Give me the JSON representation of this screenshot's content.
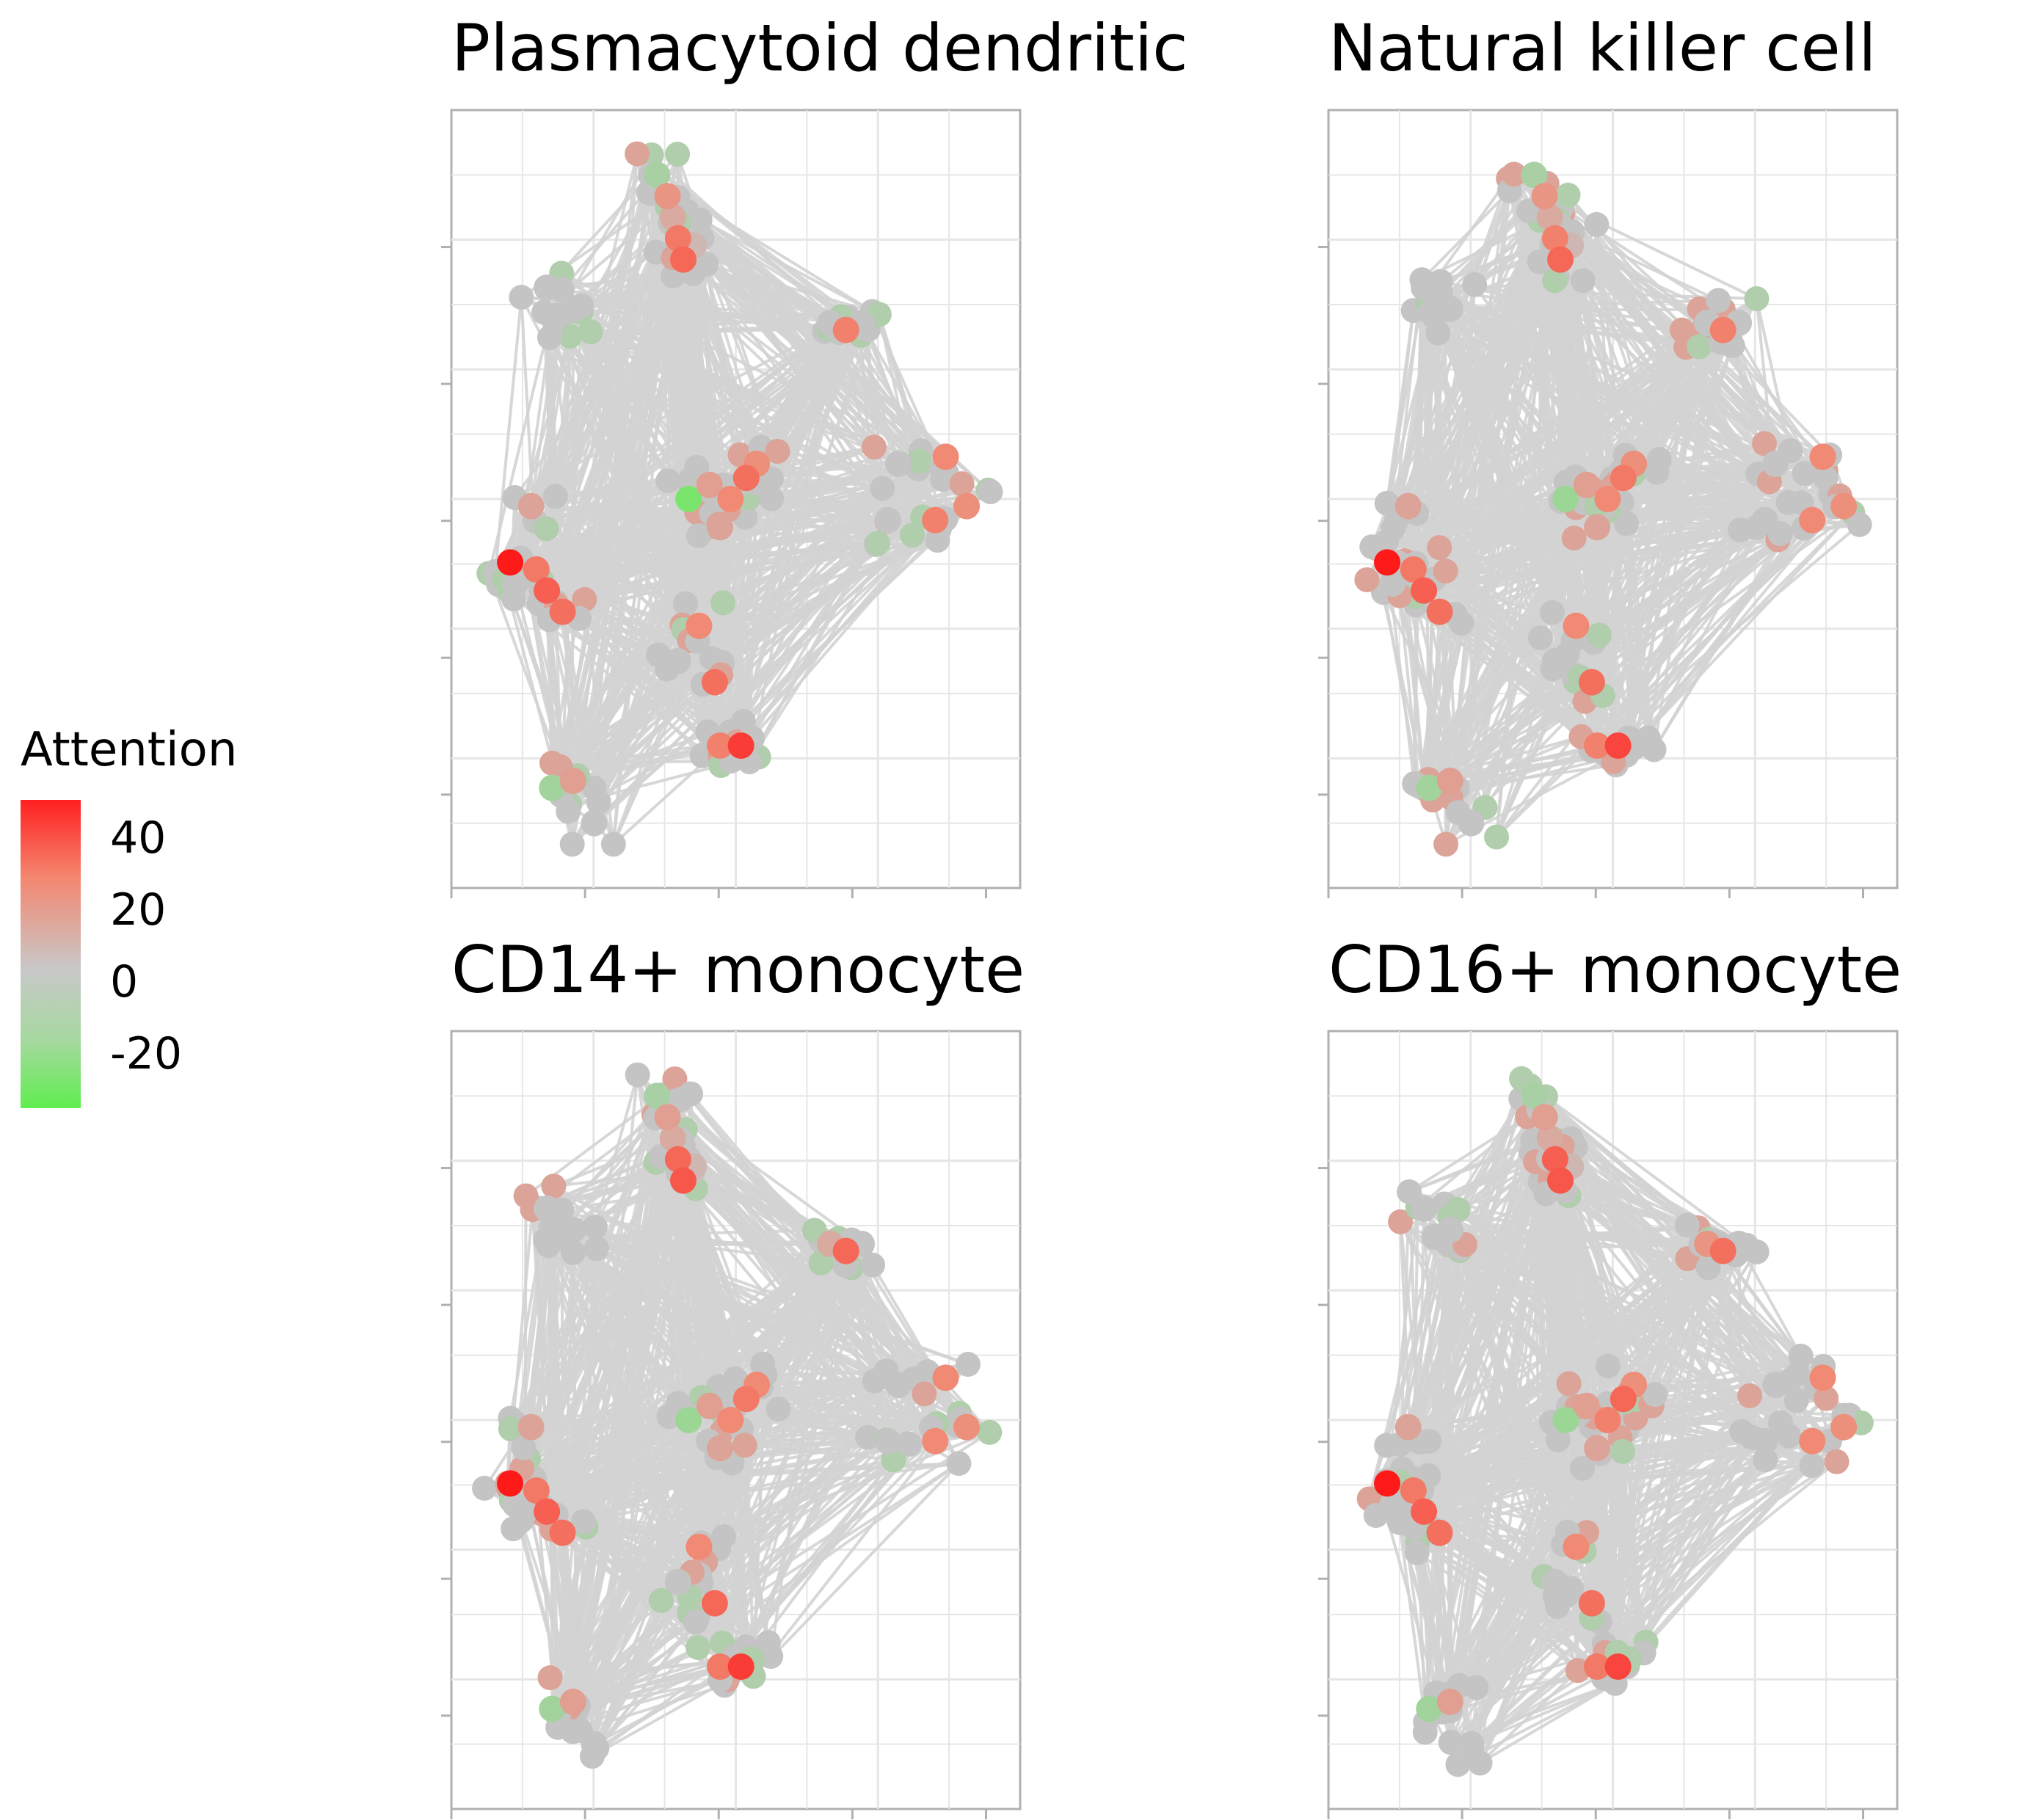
{
  "colors": {
    "high": "#ff1a1a",
    "mid_high": "#f08a74",
    "neutral": "#c4c4c4",
    "low": "#66ee55",
    "edge": "#d3d3d3",
    "panel_border": "#b0b0b0",
    "grid": "#e6e6e6"
  },
  "legend": {
    "title": "Attention",
    "ticks": [
      "40",
      "20",
      "0",
      "-20"
    ],
    "tick_values": [
      40,
      20,
      0,
      -20
    ],
    "range": [
      -28,
      48
    ],
    "placement": "left"
  },
  "chart_data": [
    {
      "type": "scatter",
      "title": "Plasmacytoid dendritic",
      "layout": "network graph of cell nodes colored by attention score, connected by dense grey edges",
      "xlim": [
        0,
        1
      ],
      "ylim": [
        0,
        1
      ],
      "grid": true,
      "points": [
        {
          "x": 0.35,
          "y": 0.96,
          "v": -8
        },
        {
          "x": 0.37,
          "y": 0.93,
          "v": 18
        },
        {
          "x": 0.38,
          "y": 0.9,
          "v": 10
        },
        {
          "x": 0.39,
          "y": 0.87,
          "v": 26
        },
        {
          "x": 0.4,
          "y": 0.84,
          "v": 30
        },
        {
          "x": 0.42,
          "y": 0.86,
          "v": 5
        },
        {
          "x": 0.14,
          "y": 0.8,
          "v": 0
        },
        {
          "x": 0.16,
          "y": 0.76,
          "v": 0
        },
        {
          "x": 0.19,
          "y": 0.77,
          "v": 0
        },
        {
          "x": 0.68,
          "y": 0.75,
          "v": 0
        },
        {
          "x": 0.71,
          "y": 0.74,
          "v": 24
        },
        {
          "x": 0.74,
          "y": 0.75,
          "v": 0
        },
        {
          "x": 0.45,
          "y": 0.52,
          "v": 14
        },
        {
          "x": 0.49,
          "y": 0.5,
          "v": 22
        },
        {
          "x": 0.52,
          "y": 0.53,
          "v": 28
        },
        {
          "x": 0.54,
          "y": 0.55,
          "v": 20
        },
        {
          "x": 0.41,
          "y": 0.5,
          "v": -22
        },
        {
          "x": 0.47,
          "y": 0.46,
          "v": 12
        },
        {
          "x": 0.81,
          "y": 0.55,
          "v": 0
        },
        {
          "x": 0.9,
          "y": 0.56,
          "v": 22
        },
        {
          "x": 0.94,
          "y": 0.49,
          "v": 20
        },
        {
          "x": 0.88,
          "y": 0.47,
          "v": 24
        },
        {
          "x": 0.79,
          "y": 0.47,
          "v": 0
        },
        {
          "x": 0.07,
          "y": 0.41,
          "v": 48
        },
        {
          "x": 0.12,
          "y": 0.4,
          "v": 26
        },
        {
          "x": 0.14,
          "y": 0.37,
          "v": 32
        },
        {
          "x": 0.17,
          "y": 0.34,
          "v": 28
        },
        {
          "x": 0.08,
          "y": 0.38,
          "v": 0
        },
        {
          "x": 0.11,
          "y": 0.49,
          "v": 12
        },
        {
          "x": 0.43,
          "y": 0.32,
          "v": 22
        },
        {
          "x": 0.46,
          "y": 0.24,
          "v": 28
        },
        {
          "x": 0.39,
          "y": 0.27,
          "v": 0
        },
        {
          "x": 0.47,
          "y": 0.15,
          "v": 24
        },
        {
          "x": 0.51,
          "y": 0.15,
          "v": 40
        },
        {
          "x": 0.53,
          "y": 0.16,
          "v": 0
        },
        {
          "x": 0.19,
          "y": 0.1,
          "v": 14
        },
        {
          "x": 0.15,
          "y": 0.09,
          "v": -10
        },
        {
          "x": 0.23,
          "y": 0.04,
          "v": 0
        }
      ]
    },
    {
      "type": "scatter",
      "title": "Natural killer cell",
      "layout": "network graph of cell nodes colored by attention score, connected by dense grey edges",
      "xlim": [
        0,
        1
      ],
      "ylim": [
        0,
        1
      ],
      "grid": true,
      "points": [
        {
          "x": 0.35,
          "y": 0.96,
          "v": -8
        },
        {
          "x": 0.37,
          "y": 0.93,
          "v": 18
        },
        {
          "x": 0.38,
          "y": 0.9,
          "v": 10
        },
        {
          "x": 0.39,
          "y": 0.87,
          "v": 24
        },
        {
          "x": 0.4,
          "y": 0.84,
          "v": 30
        },
        {
          "x": 0.42,
          "y": 0.86,
          "v": 5
        },
        {
          "x": 0.14,
          "y": 0.8,
          "v": 0
        },
        {
          "x": 0.16,
          "y": 0.76,
          "v": 0
        },
        {
          "x": 0.19,
          "y": 0.77,
          "v": 0
        },
        {
          "x": 0.68,
          "y": 0.75,
          "v": 0
        },
        {
          "x": 0.71,
          "y": 0.74,
          "v": 24
        },
        {
          "x": 0.74,
          "y": 0.75,
          "v": 0
        },
        {
          "x": 0.45,
          "y": 0.52,
          "v": 14
        },
        {
          "x": 0.49,
          "y": 0.5,
          "v": 22
        },
        {
          "x": 0.52,
          "y": 0.53,
          "v": 26
        },
        {
          "x": 0.54,
          "y": 0.55,
          "v": 20
        },
        {
          "x": 0.41,
          "y": 0.5,
          "v": -12
        },
        {
          "x": 0.47,
          "y": 0.46,
          "v": 12
        },
        {
          "x": 0.81,
          "y": 0.55,
          "v": 0
        },
        {
          "x": 0.9,
          "y": 0.56,
          "v": 22
        },
        {
          "x": 0.94,
          "y": 0.49,
          "v": 20
        },
        {
          "x": 0.88,
          "y": 0.47,
          "v": 22
        },
        {
          "x": 0.79,
          "y": 0.47,
          "v": 0
        },
        {
          "x": 0.07,
          "y": 0.41,
          "v": 48
        },
        {
          "x": 0.12,
          "y": 0.4,
          "v": 26
        },
        {
          "x": 0.14,
          "y": 0.37,
          "v": 32
        },
        {
          "x": 0.17,
          "y": 0.34,
          "v": 28
        },
        {
          "x": 0.08,
          "y": 0.38,
          "v": 0
        },
        {
          "x": 0.11,
          "y": 0.49,
          "v": 12
        },
        {
          "x": 0.43,
          "y": 0.32,
          "v": 22
        },
        {
          "x": 0.46,
          "y": 0.24,
          "v": 28
        },
        {
          "x": 0.39,
          "y": 0.27,
          "v": 0
        },
        {
          "x": 0.47,
          "y": 0.15,
          "v": 24
        },
        {
          "x": 0.51,
          "y": 0.15,
          "v": 38
        },
        {
          "x": 0.53,
          "y": 0.16,
          "v": 0
        },
        {
          "x": 0.19,
          "y": 0.1,
          "v": 14
        },
        {
          "x": 0.15,
          "y": 0.09,
          "v": -10
        },
        {
          "x": 0.23,
          "y": 0.04,
          "v": 0
        }
      ]
    },
    {
      "type": "scatter",
      "title": "CD14+ monocyte",
      "layout": "network graph of cell nodes colored by attention score, connected by dense grey edges",
      "xlim": [
        0,
        1
      ],
      "ylim": [
        0,
        1
      ],
      "grid": true,
      "points": [
        {
          "x": 0.35,
          "y": 0.96,
          "v": -8
        },
        {
          "x": 0.37,
          "y": 0.93,
          "v": 14
        },
        {
          "x": 0.38,
          "y": 0.9,
          "v": 10
        },
        {
          "x": 0.39,
          "y": 0.87,
          "v": 30
        },
        {
          "x": 0.4,
          "y": 0.84,
          "v": 34
        },
        {
          "x": 0.42,
          "y": 0.86,
          "v": 5
        },
        {
          "x": 0.14,
          "y": 0.8,
          "v": 0
        },
        {
          "x": 0.16,
          "y": 0.76,
          "v": 0
        },
        {
          "x": 0.19,
          "y": 0.77,
          "v": 0
        },
        {
          "x": 0.68,
          "y": 0.75,
          "v": 10
        },
        {
          "x": 0.71,
          "y": 0.74,
          "v": 30
        },
        {
          "x": 0.74,
          "y": 0.75,
          "v": 0
        },
        {
          "x": 0.45,
          "y": 0.52,
          "v": 14
        },
        {
          "x": 0.49,
          "y": 0.5,
          "v": 22
        },
        {
          "x": 0.52,
          "y": 0.53,
          "v": 26
        },
        {
          "x": 0.54,
          "y": 0.55,
          "v": 22
        },
        {
          "x": 0.41,
          "y": 0.5,
          "v": -12
        },
        {
          "x": 0.47,
          "y": 0.46,
          "v": 12
        },
        {
          "x": 0.81,
          "y": 0.55,
          "v": 0
        },
        {
          "x": 0.9,
          "y": 0.56,
          "v": 22
        },
        {
          "x": 0.94,
          "y": 0.49,
          "v": 20
        },
        {
          "x": 0.88,
          "y": 0.47,
          "v": 22
        },
        {
          "x": 0.79,
          "y": 0.47,
          "v": 0
        },
        {
          "x": 0.07,
          "y": 0.41,
          "v": 48
        },
        {
          "x": 0.12,
          "y": 0.4,
          "v": 26
        },
        {
          "x": 0.14,
          "y": 0.37,
          "v": 32
        },
        {
          "x": 0.17,
          "y": 0.34,
          "v": 28
        },
        {
          "x": 0.08,
          "y": 0.38,
          "v": 0
        },
        {
          "x": 0.11,
          "y": 0.49,
          "v": 12
        },
        {
          "x": 0.43,
          "y": 0.32,
          "v": 22
        },
        {
          "x": 0.46,
          "y": 0.24,
          "v": 30
        },
        {
          "x": 0.39,
          "y": 0.27,
          "v": 0
        },
        {
          "x": 0.47,
          "y": 0.15,
          "v": 26
        },
        {
          "x": 0.51,
          "y": 0.15,
          "v": 40
        },
        {
          "x": 0.53,
          "y": 0.16,
          "v": -6
        },
        {
          "x": 0.19,
          "y": 0.1,
          "v": 14
        },
        {
          "x": 0.15,
          "y": 0.09,
          "v": -10
        },
        {
          "x": 0.23,
          "y": 0.04,
          "v": 0
        }
      ]
    },
    {
      "type": "scatter",
      "title": "CD16+ monocyte",
      "layout": "network graph of cell nodes colored by attention score, connected by dense grey edges",
      "xlim": [
        0,
        1
      ],
      "ylim": [
        0,
        1
      ],
      "grid": true,
      "points": [
        {
          "x": 0.35,
          "y": 0.96,
          "v": -8
        },
        {
          "x": 0.37,
          "y": 0.93,
          "v": 14
        },
        {
          "x": 0.38,
          "y": 0.9,
          "v": 10
        },
        {
          "x": 0.39,
          "y": 0.87,
          "v": 32
        },
        {
          "x": 0.4,
          "y": 0.84,
          "v": 34
        },
        {
          "x": 0.42,
          "y": 0.86,
          "v": 5
        },
        {
          "x": 0.14,
          "y": 0.8,
          "v": 0
        },
        {
          "x": 0.16,
          "y": 0.76,
          "v": 0
        },
        {
          "x": 0.19,
          "y": 0.77,
          "v": 0
        },
        {
          "x": 0.68,
          "y": 0.75,
          "v": 18
        },
        {
          "x": 0.71,
          "y": 0.74,
          "v": 28
        },
        {
          "x": 0.74,
          "y": 0.75,
          "v": 0
        },
        {
          "x": 0.45,
          "y": 0.52,
          "v": 14
        },
        {
          "x": 0.49,
          "y": 0.5,
          "v": 24
        },
        {
          "x": 0.52,
          "y": 0.53,
          "v": 30
        },
        {
          "x": 0.54,
          "y": 0.55,
          "v": 20
        },
        {
          "x": 0.41,
          "y": 0.5,
          "v": -12
        },
        {
          "x": 0.47,
          "y": 0.46,
          "v": 12
        },
        {
          "x": 0.81,
          "y": 0.55,
          "v": 0
        },
        {
          "x": 0.9,
          "y": 0.56,
          "v": 22
        },
        {
          "x": 0.94,
          "y": 0.49,
          "v": 20
        },
        {
          "x": 0.88,
          "y": 0.47,
          "v": 22
        },
        {
          "x": 0.79,
          "y": 0.47,
          "v": 0
        },
        {
          "x": 0.07,
          "y": 0.41,
          "v": 48
        },
        {
          "x": 0.12,
          "y": 0.4,
          "v": 26
        },
        {
          "x": 0.14,
          "y": 0.37,
          "v": 32
        },
        {
          "x": 0.17,
          "y": 0.34,
          "v": 28
        },
        {
          "x": 0.08,
          "y": 0.38,
          "v": 0
        },
        {
          "x": 0.11,
          "y": 0.49,
          "v": 12
        },
        {
          "x": 0.43,
          "y": 0.32,
          "v": 22
        },
        {
          "x": 0.46,
          "y": 0.24,
          "v": 28
        },
        {
          "x": 0.39,
          "y": 0.27,
          "v": 0
        },
        {
          "x": 0.47,
          "y": 0.15,
          "v": 26
        },
        {
          "x": 0.51,
          "y": 0.15,
          "v": 38
        },
        {
          "x": 0.53,
          "y": 0.16,
          "v": -6
        },
        {
          "x": 0.19,
          "y": 0.1,
          "v": 14
        },
        {
          "x": 0.15,
          "y": 0.09,
          "v": -10
        },
        {
          "x": 0.23,
          "y": 0.04,
          "v": 0
        }
      ]
    }
  ]
}
